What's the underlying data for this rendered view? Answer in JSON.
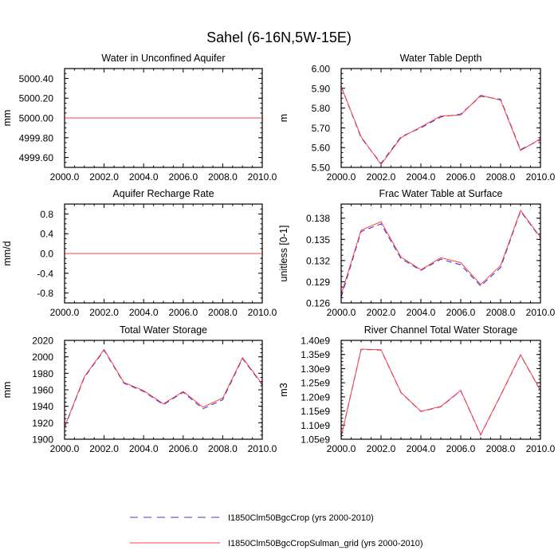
{
  "figure": {
    "title": "Sahel (6-16N,5W-15E)"
  },
  "legend": [
    {
      "label": "I1850Clm50BgcCrop (yrs 2000-2010)",
      "color": "#3b3bd9",
      "dash": "dashed"
    },
    {
      "label": "I1850Clm50BgcCropSulman_grid (yrs 2000-2010)",
      "color": "#ff4040",
      "dash": "solid"
    }
  ],
  "chart_data": [
    {
      "type": "line",
      "title": "Water in Unconfined Aquifer",
      "ylabel": "mm",
      "xlim": [
        2000,
        2010
      ],
      "ylim": [
        4999.5,
        5000.5
      ],
      "xticks": [
        "2000.0",
        "2002.0",
        "2004.0",
        "2006.0",
        "2008.0",
        "2010.0"
      ],
      "yticks": [
        {
          "v": 4999.6,
          "label": "4999.60"
        },
        {
          "v": 4999.8,
          "label": "4999.80"
        },
        {
          "v": 5000.0,
          "label": "5000.00"
        },
        {
          "v": 5000.2,
          "label": "5000.20"
        },
        {
          "v": 5000.4,
          "label": "5000.40"
        }
      ],
      "x": [
        2000,
        2001,
        2002,
        2003,
        2004,
        2005,
        2006,
        2007,
        2008,
        2009,
        2010
      ],
      "series": [
        {
          "values": [
            5000,
            5000,
            5000,
            5000,
            5000,
            5000,
            5000,
            5000,
            5000,
            5000,
            5000
          ]
        },
        {
          "values": [
            5000,
            5000,
            5000,
            5000,
            5000,
            5000,
            5000,
            5000,
            5000,
            5000,
            5000
          ]
        }
      ]
    },
    {
      "type": "line",
      "title": "Water Table Depth",
      "ylabel": "m",
      "xlim": [
        2000,
        2010
      ],
      "ylim": [
        5.5,
        6.0
      ],
      "xticks": [
        "2000.0",
        "2002.0",
        "2004.0",
        "2006.0",
        "2008.0",
        "2010.0"
      ],
      "yticks": [
        {
          "v": 5.5,
          "label": "5.50"
        },
        {
          "v": 5.6,
          "label": "5.60"
        },
        {
          "v": 5.7,
          "label": "5.70"
        },
        {
          "v": 5.8,
          "label": "5.80"
        },
        {
          "v": 5.9,
          "label": "5.90"
        },
        {
          "v": 6.0,
          "label": "6.00"
        }
      ],
      "x": [
        2000,
        2001,
        2002,
        2003,
        2004,
        2005,
        2006,
        2007,
        2008,
        2009,
        2010
      ],
      "series": [
        {
          "values": [
            5.91,
            5.65,
            5.52,
            5.655,
            5.7,
            5.755,
            5.77,
            5.86,
            5.845,
            5.59,
            5.64
          ]
        },
        {
          "values": [
            5.91,
            5.655,
            5.515,
            5.65,
            5.705,
            5.76,
            5.765,
            5.865,
            5.84,
            5.585,
            5.645
          ]
        }
      ]
    },
    {
      "type": "line",
      "title": "Aquifer Recharge Rate",
      "ylabel": "mm/d",
      "xlim": [
        2000,
        2010
      ],
      "ylim": [
        -1.0,
        1.0
      ],
      "xticks": [
        "2000.0",
        "2002.0",
        "2004.0",
        "2006.0",
        "2008.0",
        "2010.0"
      ],
      "yticks": [
        {
          "v": -0.8,
          "label": "-0.8"
        },
        {
          "v": -0.4,
          "label": "-0.4"
        },
        {
          "v": 0.0,
          "label": "0.0"
        },
        {
          "v": 0.4,
          "label": "0.4"
        },
        {
          "v": 0.8,
          "label": "0.8"
        }
      ],
      "x": [
        2000,
        2001,
        2002,
        2003,
        2004,
        2005,
        2006,
        2007,
        2008,
        2009,
        2010
      ],
      "series": [
        {
          "values": [
            0,
            0,
            0,
            0,
            0,
            0,
            0,
            0,
            0,
            0,
            0
          ]
        },
        {
          "values": [
            0,
            0,
            0,
            0,
            0,
            0,
            0,
            0,
            0,
            0,
            0
          ]
        }
      ]
    },
    {
      "type": "line",
      "title": "Frac Water Table at Surface",
      "ylabel": "unitless [0-1]",
      "xlim": [
        2000,
        2010
      ],
      "ylim": [
        0.126,
        0.14
      ],
      "xticks": [
        "2000.0",
        "2002.0",
        "2004.0",
        "2006.0",
        "2008.0",
        "2010.0"
      ],
      "yticks": [
        {
          "v": 0.126,
          "label": "0.126"
        },
        {
          "v": 0.129,
          "label": "0.129"
        },
        {
          "v": 0.132,
          "label": "0.132"
        },
        {
          "v": 0.135,
          "label": "0.135"
        },
        {
          "v": 0.138,
          "label": "0.138"
        }
      ],
      "x": [
        2000,
        2001,
        2002,
        2003,
        2004,
        2005,
        2006,
        2007,
        2008,
        2009,
        2010
      ],
      "series": [
        {
          "values": [
            0.1268,
            0.1361,
            0.1372,
            0.1323,
            0.1306,
            0.1322,
            0.1314,
            0.1284,
            0.131,
            0.139,
            0.1352
          ]
        },
        {
          "values": [
            0.1272,
            0.1363,
            0.1375,
            0.1325,
            0.1307,
            0.1324,
            0.1317,
            0.1286,
            0.1313,
            0.1391,
            0.1353
          ]
        }
      ]
    },
    {
      "type": "line",
      "title": "Total Water Storage",
      "ylabel": "mm",
      "xlim": [
        2000,
        2010
      ],
      "ylim": [
        1900,
        2020
      ],
      "xticks": [
        "2000.0",
        "2002.0",
        "2004.0",
        "2006.0",
        "2008.0",
        "2010.0"
      ],
      "yticks": [
        {
          "v": 1900,
          "label": "1900"
        },
        {
          "v": 1920,
          "label": "1920"
        },
        {
          "v": 1940,
          "label": "1940"
        },
        {
          "v": 1960,
          "label": "1960"
        },
        {
          "v": 1980,
          "label": "1980"
        },
        {
          "v": 2000,
          "label": "2000"
        },
        {
          "v": 2020,
          "label": "2020"
        }
      ],
      "x": [
        2000,
        2001,
        2002,
        2003,
        2004,
        2005,
        2006,
        2007,
        2008,
        2009,
        2010
      ],
      "series": [
        {
          "values": [
            1914,
            1975,
            2008,
            1968,
            1958,
            1942,
            1957,
            1937,
            1948,
            1998,
            1966
          ]
        },
        {
          "values": [
            1915,
            1976,
            2009,
            1969,
            1959,
            1943,
            1958,
            1939,
            1950,
            1999,
            1967
          ]
        }
      ]
    },
    {
      "type": "line",
      "title": "River Channel Total Water Storage",
      "ylabel": "m3",
      "xlim": [
        2000,
        2010
      ],
      "ylim": [
        1050000000.0,
        1400000000.0
      ],
      "xticks": [
        "2000.0",
        "2002.0",
        "2004.0",
        "2006.0",
        "2008.0",
        "2010.0"
      ],
      "yticks": [
        {
          "v": 1050000000.0,
          "label": "1.05e9"
        },
        {
          "v": 1100000000.0,
          "label": "1.10e9"
        },
        {
          "v": 1150000000.0,
          "label": "1.15e9"
        },
        {
          "v": 1200000000.0,
          "label": "1.20e9"
        },
        {
          "v": 1250000000.0,
          "label": "1.25e9"
        },
        {
          "v": 1300000000.0,
          "label": "1.30e9"
        },
        {
          "v": 1350000000.0,
          "label": "1.35e9"
        },
        {
          "v": 1400000000.0,
          "label": "1.40e9"
        }
      ],
      "x": [
        2000,
        2001,
        2002,
        2003,
        2004,
        2005,
        2006,
        2007,
        2008,
        2009,
        2010
      ],
      "series": [
        {
          "values": [
            1058000000.0,
            1368000000.0,
            1366000000.0,
            1215000000.0,
            1148000000.0,
            1165000000.0,
            1222000000.0,
            1065000000.0,
            1205000000.0,
            1348000000.0,
            1222000000.0
          ]
        },
        {
          "values": [
            1058000000.0,
            1369000000.0,
            1367000000.0,
            1216000000.0,
            1149000000.0,
            1166000000.0,
            1223000000.0,
            1066000000.0,
            1206000000.0,
            1349000000.0,
            1223000000.0
          ]
        }
      ]
    }
  ]
}
